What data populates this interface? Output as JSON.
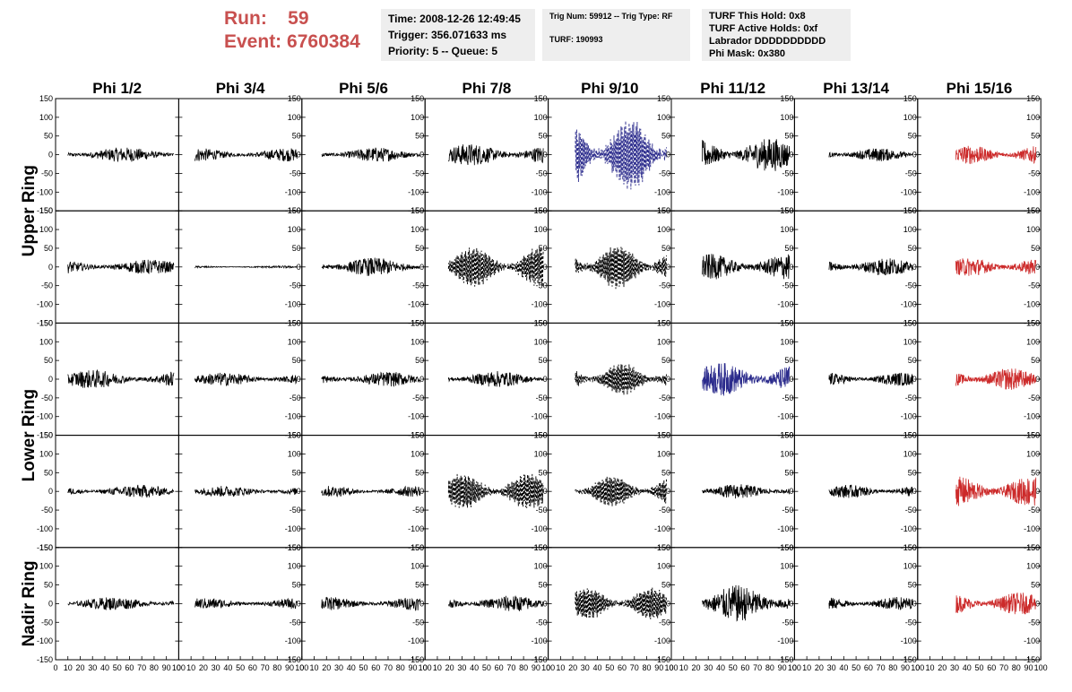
{
  "header": {
    "run_label": "Run:",
    "run_value": "59",
    "event_label": "Event:",
    "event_value": "6760384",
    "time": "Time: 2008-12-26 12:49:45",
    "trigger": "Trigger: 356.071633 ms",
    "priority": "Priority: 5 -- Queue: 5",
    "trig_num": "Trig Num: 59912 -- Trig Type: RF",
    "turf": "TURF: 190993",
    "turf_hold": "TURF This Hold: 0x8",
    "turf_active": "TURF Active Holds: 0xf",
    "labrador": "Labrador DDDDDDDDDD",
    "phi_mask": "Phi Mask: 0x380"
  },
  "chart_data": {
    "type": "line",
    "columns": [
      "Phi 1/2",
      "Phi 3/4",
      "Phi 5/6",
      "Phi 7/8",
      "Phi 9/10",
      "Phi 11/12",
      "Phi 13/14",
      "Phi 15/16"
    ],
    "ring_labels": [
      {
        "label": "Upper Ring",
        "rows": [
          0,
          1
        ]
      },
      {
        "label": "Lower Ring",
        "rows": [
          2,
          3
        ]
      },
      {
        "label": "Nadir Ring",
        "rows": [
          4
        ]
      }
    ],
    "xlim": [
      0,
      100
    ],
    "ylim": [
      -150,
      150
    ],
    "x_ticks": [
      "0",
      "10",
      "20",
      "30",
      "40",
      "50",
      "60",
      "70",
      "80",
      "90",
      "100"
    ],
    "y_ticks": [
      "-150",
      "-100",
      "-50",
      "0",
      "50",
      "100",
      "150"
    ],
    "colors": {
      "normal": "#000000",
      "triggered": "#2b2b8c",
      "phi_mask": "#cc2a2a"
    },
    "panels": [
      [
        "normal",
        "normal",
        "normal",
        "normal",
        "triggered-dashed",
        "normal",
        "normal",
        "phi_mask"
      ],
      [
        "normal",
        "normal-flat",
        "normal",
        "dashed",
        "dashed",
        "normal",
        "normal",
        "phi_mask"
      ],
      [
        "normal",
        "normal",
        "normal",
        "normal",
        "dashed",
        "triggered",
        "normal",
        "phi_mask"
      ],
      [
        "normal",
        "normal",
        "normal",
        "dashed",
        "dashed",
        "normal",
        "normal",
        "phi_mask"
      ],
      [
        "normal",
        "normal",
        "normal",
        "normal",
        "dashed",
        "normal",
        "normal",
        "phi_mask"
      ]
    ],
    "amplitudes": [
      [
        20,
        18,
        20,
        30,
        90,
        45,
        18,
        25
      ],
      [
        20,
        3,
        25,
        50,
        55,
        35,
        25,
        25
      ],
      [
        25,
        18,
        20,
        22,
        40,
        45,
        18,
        30
      ],
      [
        18,
        15,
        15,
        45,
        40,
        20,
        18,
        40
      ],
      [
        18,
        15,
        18,
        22,
        40,
        50,
        18,
        30
      ]
    ]
  }
}
